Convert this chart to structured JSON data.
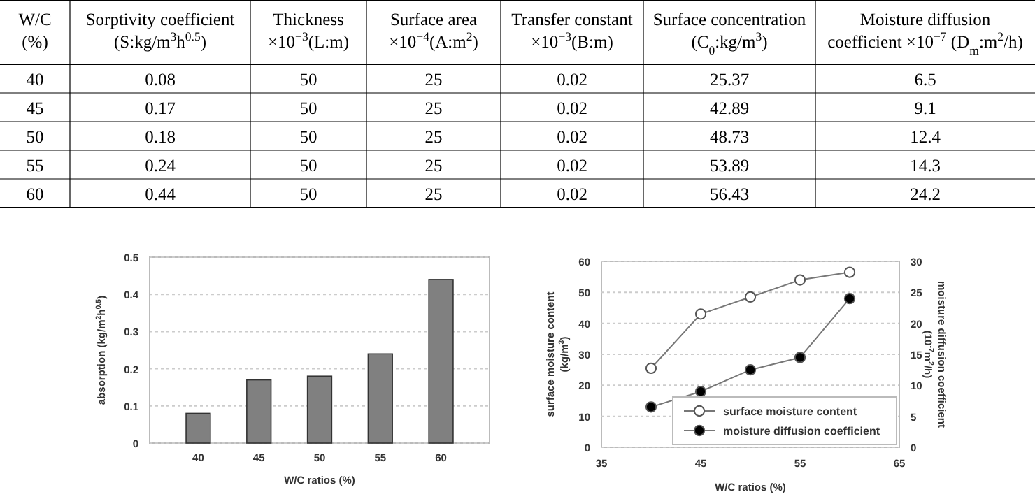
{
  "chart_data": [
    {
      "type": "heatmap",
      "data_labels": true,
      "ylabel": "W/C\n(%)",
      "y_categories": [
        "40",
        "45",
        "50",
        "55",
        "60"
      ],
      "categories": [
        "Sorptivity coefficient\n(S:kg/m$^{3}$h$^{0.5}$)",
        "Thickness\n×10$^{−3}$(L:m)",
        "Surface area\n×10$^{−4}$(A:m$^{2}$)",
        "Transfer constant\n×10$^{−3}$(B:m)",
        "Surface concentration\n(C$_{0}$:kg/m$^{3}$)",
        "Moisture diffusion\ncoefficient ×10$^{−7}$ (D$_{m}$:m$^{2}$/h)"
      ],
      "cells": [
        [
          0.08,
          50,
          25,
          0.02,
          25.37,
          6.5
        ],
        [
          0.17,
          50,
          25,
          0.02,
          42.89,
          9.1
        ],
        [
          0.18,
          50,
          25,
          0.02,
          48.73,
          12.4
        ],
        [
          0.24,
          50,
          25,
          0.02,
          53.89,
          14.3
        ],
        [
          0.44,
          50,
          25,
          0.02,
          56.43,
          24.2
        ]
      ]
    },
    {
      "type": "bar",
      "categories": [
        "40",
        "45",
        "50",
        "55",
        "60"
      ],
      "values": [
        0.08,
        0.17,
        0.18,
        0.24,
        0.44
      ],
      "color": "#808080",
      "ylim": [
        0,
        0.5
      ],
      "yticks": [
        0,
        0.1,
        0.2,
        0.3,
        0.4,
        0.5
      ],
      "grid": "y",
      "xlabel": "W/C ratios (%)",
      "ylabel": "absorption (kg/m$^{2}$h$^{0.5}$)"
    },
    {
      "type": "line",
      "x": [
        40,
        45,
        50,
        55,
        60
      ],
      "xlim": [
        35,
        65
      ],
      "xticks": [
        35,
        45,
        55,
        65
      ],
      "ylim": [
        0,
        60
      ],
      "yticks": [
        0,
        10,
        20,
        30,
        40,
        50,
        60
      ],
      "y2lim": [
        0,
        30
      ],
      "y2ticks": [
        0,
        5,
        10,
        15,
        20,
        25,
        30
      ],
      "grid": "y",
      "legend": "bottom right",
      "marker": "circle",
      "xlabel": "W/C ratios (%)",
      "ylabel": "surface moisture content\n(kg/m$^{3}$)",
      "y2label": "moisture diffusion coefficient\n(10$^{-7}$m$^{2}$/h)",
      "series": [
        {
          "name": "surface moisture content",
          "color": "#ffffff",
          "values": [
            25.5,
            43,
            48.5,
            54,
            56.5
          ]
        },
        {
          "name": "moisture diffusion coefficient",
          "color": "#000000",
          "axis": "y2",
          "values": [
            6.5,
            9,
            12.5,
            14.5,
            24
          ]
        }
      ]
    }
  ]
}
